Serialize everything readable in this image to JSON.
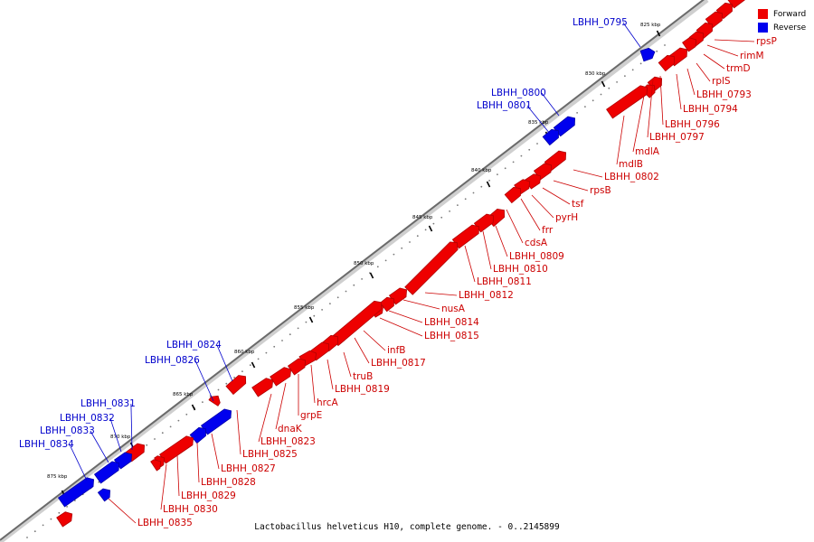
{
  "legend": {
    "forward_label": "Forward",
    "reverse_label": "Reverse",
    "forward_color": "#ee0000",
    "reverse_color": "#0000ee"
  },
  "caption": "Lactobacillus helveticus H10, complete genome. - 0..2145899",
  "scale_labels": [
    "825 kbp",
    "830 kbp",
    "835 kbp",
    "840 kbp",
    "845 kbp",
    "850 kbp",
    "855 kbp",
    "860 kbp",
    "865 kbp",
    "870 kbp",
    "875 kbp"
  ],
  "genes": [
    {
      "label": "rpsP",
      "strand": "forward"
    },
    {
      "label": "rimM",
      "strand": "forward"
    },
    {
      "label": "trmD",
      "strand": "forward"
    },
    {
      "label": "rplS",
      "strand": "forward"
    },
    {
      "label": "LBHH_0793",
      "strand": "forward"
    },
    {
      "label": "LBHH_0794",
      "strand": "forward"
    },
    {
      "label": "LBHH_0795",
      "strand": "reverse"
    },
    {
      "label": "LBHH_0796",
      "strand": "forward"
    },
    {
      "label": "LBHH_0797",
      "strand": "forward"
    },
    {
      "label": "mdlA",
      "strand": "forward"
    },
    {
      "label": "mdlB",
      "strand": "forward"
    },
    {
      "label": "LBHH_0800",
      "strand": "reverse"
    },
    {
      "label": "LBHH_0801",
      "strand": "reverse"
    },
    {
      "label": "LBHH_0802",
      "strand": "forward"
    },
    {
      "label": "rpsB",
      "strand": "forward"
    },
    {
      "label": "tsf",
      "strand": "forward"
    },
    {
      "label": "pyrH",
      "strand": "forward"
    },
    {
      "label": "frr",
      "strand": "forward"
    },
    {
      "label": "cdsA",
      "strand": "forward"
    },
    {
      "label": "LBHH_0809",
      "strand": "forward"
    },
    {
      "label": "LBHH_0810",
      "strand": "forward"
    },
    {
      "label": "LBHH_0811",
      "strand": "forward"
    },
    {
      "label": "LBHH_0812",
      "strand": "forward"
    },
    {
      "label": "nusA",
      "strand": "forward"
    },
    {
      "label": "LBHH_0814",
      "strand": "forward"
    },
    {
      "label": "LBHH_0815",
      "strand": "forward"
    },
    {
      "label": "infB",
      "strand": "forward"
    },
    {
      "label": "LBHH_0817",
      "strand": "forward"
    },
    {
      "label": "truB",
      "strand": "forward"
    },
    {
      "label": "LBHH_0819",
      "strand": "forward"
    },
    {
      "label": "hrcA",
      "strand": "forward"
    },
    {
      "label": "grpE",
      "strand": "forward"
    },
    {
      "label": "dnaK",
      "strand": "forward"
    },
    {
      "label": "LBHH_0823",
      "strand": "forward"
    },
    {
      "label": "LBHH_0824",
      "strand": "reverse"
    },
    {
      "label": "LBHH_0825",
      "strand": "forward"
    },
    {
      "label": "LBHH_0826",
      "strand": "reverse"
    },
    {
      "label": "LBHH_0827",
      "strand": "forward"
    },
    {
      "label": "LBHH_0828",
      "strand": "forward"
    },
    {
      "label": "LBHH_0829",
      "strand": "forward"
    },
    {
      "label": "LBHH_0830",
      "strand": "forward"
    },
    {
      "label": "LBHH_0831",
      "strand": "reverse"
    },
    {
      "label": "LBHH_0832",
      "strand": "reverse"
    },
    {
      "label": "LBHH_0833",
      "strand": "reverse"
    },
    {
      "label": "LBHH_0834",
      "strand": "reverse"
    },
    {
      "label": "LBHH_0835",
      "strand": "forward"
    }
  ]
}
